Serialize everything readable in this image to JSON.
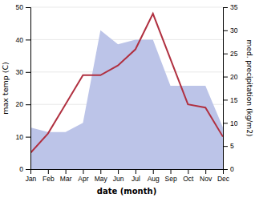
{
  "chart_data": {
    "type": "line",
    "categories": [
      "Jan",
      "Feb",
      "Mar",
      "Apr",
      "May",
      "Jun",
      "Jul",
      "Aug",
      "Sep",
      "Oct",
      "Nov",
      "Dec"
    ],
    "series": [
      {
        "type": "area",
        "axis": "y2",
        "color": "#bcc4e8",
        "values": [
          9,
          8,
          8,
          10,
          30,
          27,
          28,
          28,
          18,
          18,
          18,
          9
        ]
      },
      {
        "type": "line",
        "color": "#b03040",
        "values": [
          5,
          11,
          20,
          29,
          29,
          32,
          37,
          48,
          34,
          20,
          19,
          10
        ]
      }
    ],
    "xlabel": "date (month)",
    "ylabel": "max temp (C)",
    "y2label": "med. precipitation (kg/m2)",
    "ylim": [
      0,
      50
    ],
    "yticks": [
      0,
      10,
      20,
      30,
      40,
      50
    ],
    "y2lim": [
      0,
      35
    ],
    "y2ticks": [
      0,
      5,
      10,
      15,
      20,
      25,
      30,
      35
    ],
    "grid": true
  }
}
